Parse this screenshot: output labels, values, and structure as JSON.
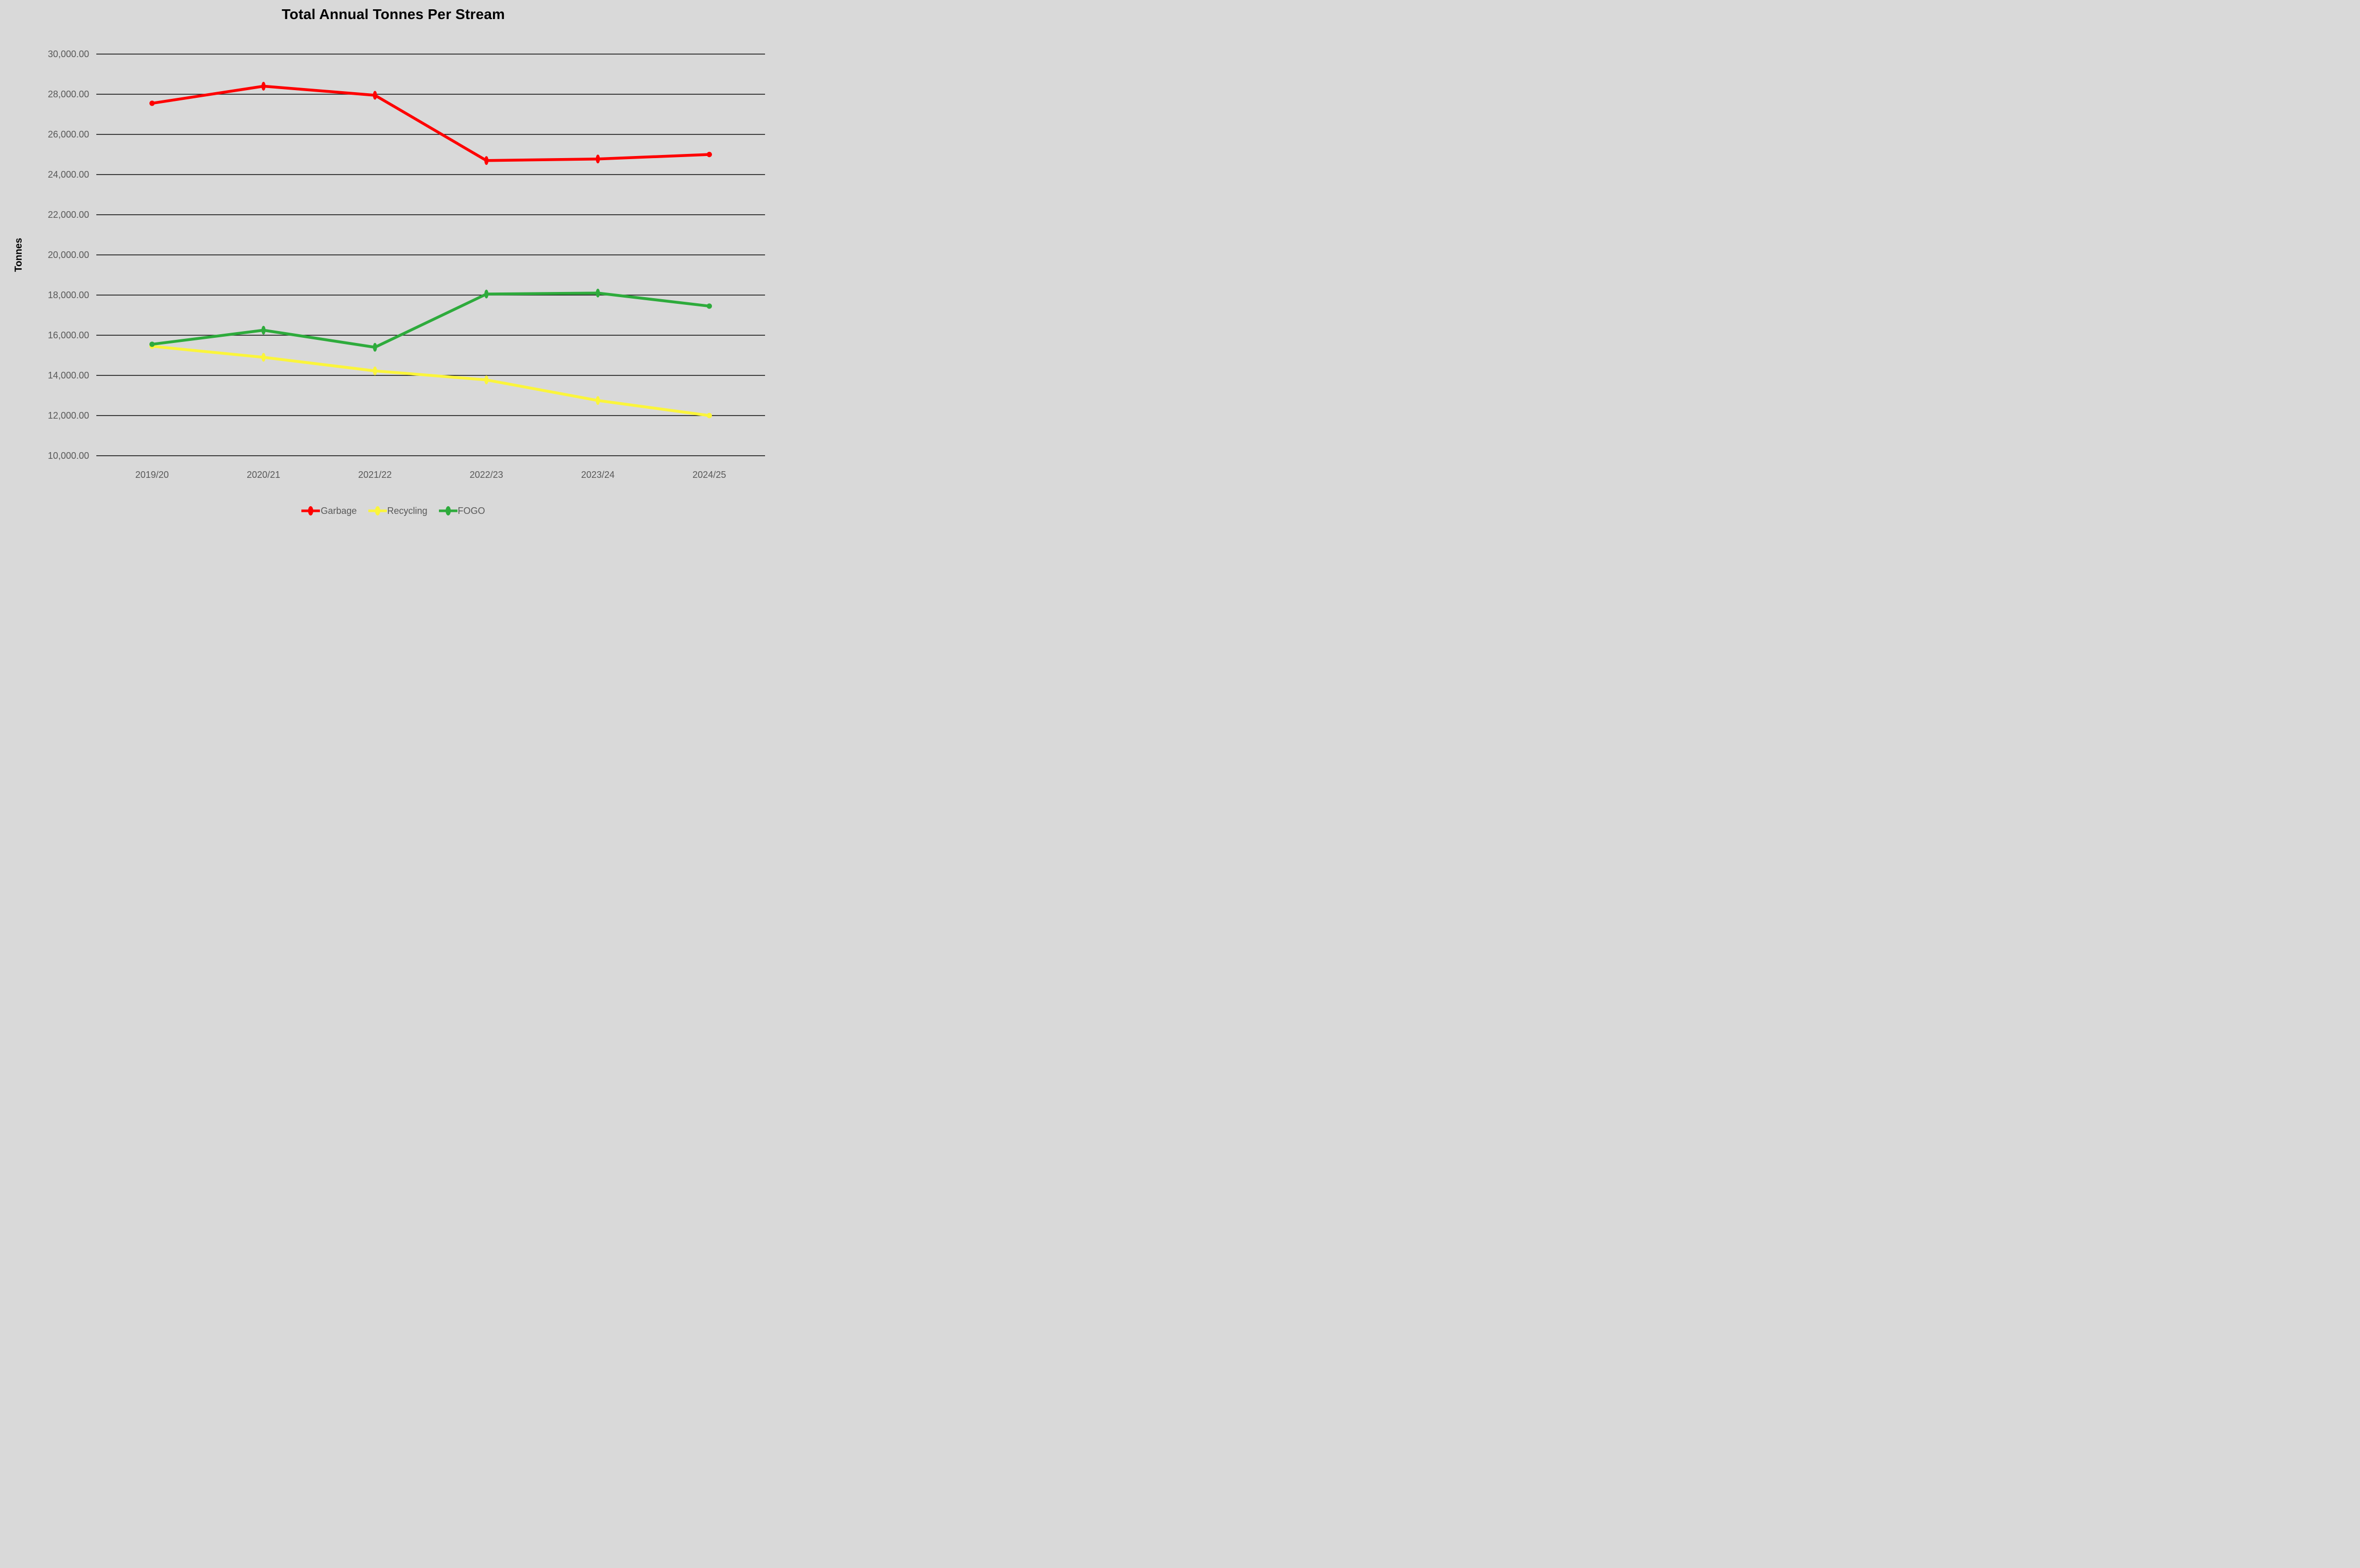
{
  "title": "Total Annual Tonnes Per Stream",
  "y_axis": {
    "title": "Tonnes",
    "tick_labels_top_to_bottom": [
      "30,000.00",
      "28,000.00",
      "26,000.00",
      "24,000.00",
      "22,000.00",
      "20,000.00",
      "18,000.00",
      "16,000.00",
      "14,000.00",
      "12,000.00",
      "10,000.00"
    ]
  },
  "x_axis": {
    "categories": [
      "2019/20",
      "2020/21",
      "2021/22",
      "2022/23",
      "2023/24",
      "2024/25"
    ]
  },
  "legend_labels": [
    "Garbage",
    "Recycling",
    "FOGO"
  ],
  "colors": {
    "background": "#d9d9d9",
    "gridline": "#0d0d0d",
    "tick_text": "#595959",
    "title_text": "#000000",
    "garbage": "#fe0000",
    "recycling": "#fbf53b",
    "fogo": "#2eab3c"
  },
  "chart_data": {
    "type": "line",
    "title": "Total Annual Tonnes Per Stream",
    "ylabel": "Tonnes",
    "xlabel": "",
    "categories": [
      "2019/20",
      "2020/21",
      "2021/22",
      "2022/23",
      "2023/24",
      "2024/25"
    ],
    "series": [
      {
        "name": "Garbage",
        "color": "#fe0000",
        "values": [
          27550,
          28400,
          27950,
          24700,
          24775,
          25000
        ]
      },
      {
        "name": "Recycling",
        "color": "#fbf53b",
        "values": [
          15450,
          14900,
          14225,
          13775,
          12750,
          12000
        ]
      },
      {
        "name": "FOGO",
        "color": "#2eab3c",
        "values": [
          15550,
          16250,
          15400,
          18050,
          18100,
          17450
        ]
      }
    ],
    "ylim": [
      10000,
      30000
    ],
    "ytick_step": 2000,
    "ytick_format": "#,##0.00",
    "grid": true,
    "gridlines": "horizontal",
    "legend_position": "bottom",
    "marker": "oval",
    "background": "#d9d9d9"
  }
}
